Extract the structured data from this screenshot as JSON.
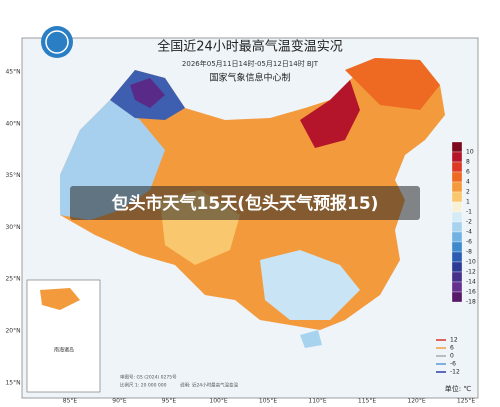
{
  "header": {
    "title": "全国近24小时最高气温变温实况",
    "subtitle": "2026年05月11日14时-05月12日14时 BJT",
    "agency": "国家气象信息中心制"
  },
  "overlay": "包头市天气15天(包头天气预报15)",
  "latitudes": [
    "45°N",
    "40°N",
    "35°N",
    "30°N",
    "25°N",
    "20°N",
    "15°N"
  ],
  "longitudes": [
    "85°E",
    "90°E",
    "95°E",
    "100°E",
    "105°E",
    "110°E",
    "115°E",
    "120°E",
    "125°E"
  ],
  "legend": {
    "unit": "单位: ℃",
    "items": [
      {
        "label": "10",
        "color": "#7e0a1e"
      },
      {
        "label": "8",
        "color": "#b5152a"
      },
      {
        "label": "6",
        "color": "#dc3a26"
      },
      {
        "label": "4",
        "color": "#ee6a22"
      },
      {
        "label": "2",
        "color": "#f59a3a"
      },
      {
        "label": "1",
        "color": "#f9c86e"
      },
      {
        "label": "-1",
        "color": "#f7f1d8"
      },
      {
        "label": "-2",
        "color": "#d5ebf6"
      },
      {
        "label": "-4",
        "color": "#a8d3ef"
      },
      {
        "label": "-6",
        "color": "#72b2e2"
      },
      {
        "label": "-8",
        "color": "#3f88cc"
      },
      {
        "label": "-10",
        "color": "#2b5cb1"
      },
      {
        "label": "-12",
        "color": "#2e3b95"
      },
      {
        "label": "-14",
        "color": "#46308a"
      },
      {
        "label": "-16",
        "color": "#65308e"
      },
      {
        "label": "-18",
        "color": "#561a68"
      }
    ]
  },
  "inset_legend": [
    {
      "label": "12",
      "color": "#d8342a"
    },
    {
      "label": "6",
      "color": "#f0a040"
    },
    {
      "label": "0",
      "color": "#aaaaaa"
    },
    {
      "label": "-6",
      "color": "#5a9ad8"
    },
    {
      "label": "-12",
      "color": "#3040a0"
    }
  ],
  "footnotes": {
    "map_number": "审图号: GS (2024) 0275号",
    "scale": "比例尺 1: 20 000 000",
    "note": "说明: 近24小时最高气温变温",
    "islands": "南海诸岛"
  }
}
